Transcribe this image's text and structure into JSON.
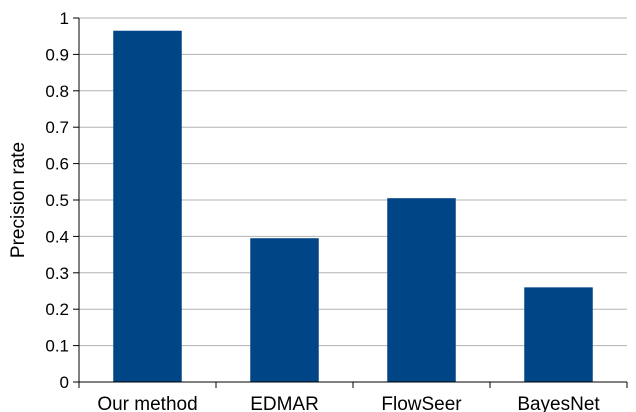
{
  "chart_data": {
    "type": "bar",
    "title": "",
    "xlabel": "",
    "ylabel": "Precision rate",
    "categories": [
      "Our method",
      "EDMAR",
      "FlowSeer",
      "BayesNet"
    ],
    "values": [
      0.965,
      0.395,
      0.505,
      0.26
    ],
    "ylim": [
      0,
      1
    ],
    "yticks": [
      "0",
      "0.1",
      "0.2",
      "0.3",
      "0.4",
      "0.5",
      "0.6",
      "0.7",
      "0.8",
      "0.9",
      "1"
    ],
    "grid": true,
    "legend": "none",
    "colors": {
      "bar": "#004586",
      "grid": "#b3b3b3",
      "axis": "#000000"
    }
  }
}
